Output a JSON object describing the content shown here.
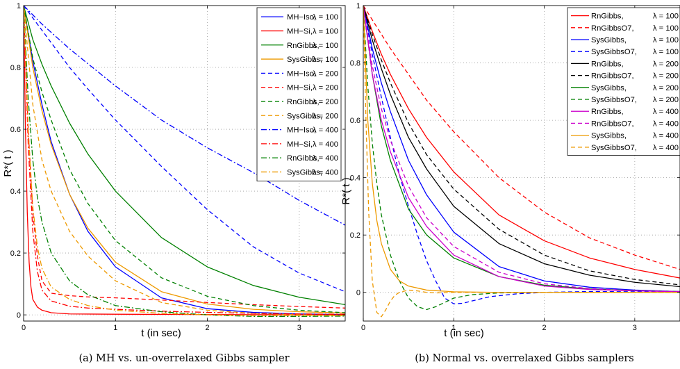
{
  "chart_data": [
    {
      "type": "line",
      "xlabel": "t (in sec)",
      "ylabel": "R*( t )",
      "caption": "(a) MH vs. un-overrelaxed Gibbs sampler",
      "xlim": [
        0,
        3.5
      ],
      "ylim": [
        -0.02,
        1.0
      ],
      "xticks": [
        0,
        1,
        2,
        3
      ],
      "yticks": [
        0,
        0.2,
        0.4,
        0.6,
        0.8,
        1
      ],
      "ytick_labels": [
        "0",
        "0.2",
        "0.4",
        "0.6",
        "0.8",
        "1"
      ],
      "grid": true,
      "legend_position": "top-right",
      "series": [
        {
          "label": "MH−Iso,",
          "lambda": "λ = 100",
          "color": "#0000ff",
          "dash": "solid",
          "x": [
            0,
            0.1,
            0.2,
            0.3,
            0.5,
            0.7,
            1.0,
            1.5,
            2.0,
            2.5,
            3.0,
            3.5
          ],
          "y": [
            1.0,
            0.82,
            0.68,
            0.56,
            0.39,
            0.27,
            0.155,
            0.055,
            0.02,
            0.008,
            0.003,
            0.001
          ]
        },
        {
          "label": "MH−Si,",
          "lambda": "λ = 100",
          "color": "#ff0000",
          "dash": "solid",
          "x": [
            0,
            0.02,
            0.04,
            0.06,
            0.08,
            0.1,
            0.15,
            0.2,
            0.3,
            0.5,
            1.0,
            2.0,
            3.5
          ],
          "y": [
            1.0,
            0.6,
            0.33,
            0.17,
            0.09,
            0.05,
            0.025,
            0.015,
            0.007,
            0.003,
            0.002,
            0.001,
            0.0
          ]
        },
        {
          "label": "RnGibbs,",
          "lambda": "λ = 100",
          "color": "#008000",
          "dash": "solid",
          "x": [
            0,
            0.1,
            0.2,
            0.3,
            0.5,
            0.7,
            1.0,
            1.5,
            2.0,
            2.5,
            3.0,
            3.5
          ],
          "y": [
            1.0,
            0.89,
            0.81,
            0.74,
            0.62,
            0.52,
            0.4,
            0.25,
            0.155,
            0.095,
            0.057,
            0.033
          ]
        },
        {
          "label": "SysGibbs,",
          "lambda": "λ = 100",
          "color": "#ee9a00",
          "dash": "solid",
          "x": [
            0,
            0.1,
            0.2,
            0.3,
            0.5,
            0.7,
            1.0,
            1.5,
            2.0,
            2.5,
            3.0,
            3.5
          ],
          "y": [
            1.0,
            0.8,
            0.66,
            0.55,
            0.39,
            0.28,
            0.17,
            0.075,
            0.035,
            0.018,
            0.01,
            0.006
          ]
        },
        {
          "label": "MH−Iso,",
          "lambda": "λ = 200",
          "color": "#0000ff",
          "dash": "6,4",
          "x": [
            0,
            0.1,
            0.2,
            0.3,
            0.5,
            0.7,
            1.0,
            1.5,
            2.0,
            2.5,
            3.0,
            3.5
          ],
          "y": [
            1.0,
            0.96,
            0.92,
            0.88,
            0.8,
            0.73,
            0.63,
            0.48,
            0.34,
            0.22,
            0.135,
            0.075
          ]
        },
        {
          "label": "MH−Si,",
          "lambda": "λ = 200",
          "color": "#ff0000",
          "dash": "6,4",
          "x": [
            0,
            0.05,
            0.1,
            0.15,
            0.2,
            0.3,
            0.5,
            0.7,
            1.0,
            1.5,
            2.0,
            2.5,
            3.0,
            3.5
          ],
          "y": [
            1.0,
            0.6,
            0.33,
            0.19,
            0.11,
            0.07,
            0.062,
            0.058,
            0.055,
            0.048,
            0.04,
            0.033,
            0.027,
            0.022
          ]
        },
        {
          "label": "RnGibbs,",
          "lambda": "λ = 200",
          "color": "#008000",
          "dash": "6,4",
          "x": [
            0,
            0.1,
            0.2,
            0.3,
            0.5,
            0.7,
            1.0,
            1.5,
            2.0,
            2.5,
            3.0,
            3.5
          ],
          "y": [
            1.0,
            0.83,
            0.72,
            0.63,
            0.47,
            0.36,
            0.24,
            0.12,
            0.06,
            0.03,
            0.015,
            0.007
          ]
        },
        {
          "label": "SysGibbs,",
          "lambda": "λ = 200",
          "color": "#ee9a00",
          "dash": "6,4",
          "x": [
            0,
            0.1,
            0.2,
            0.3,
            0.5,
            0.7,
            1.0,
            1.5,
            2.0,
            2.5,
            3.0,
            3.5
          ],
          "y": [
            1.0,
            0.68,
            0.5,
            0.4,
            0.27,
            0.19,
            0.11,
            0.04,
            0.015,
            0.005,
            0.0,
            -0.003
          ]
        },
        {
          "label": "MH−Iso,",
          "lambda": "λ = 400",
          "color": "#0000ff",
          "dash": "8,3,2,3",
          "x": [
            0,
            0.2,
            0.5,
            1.0,
            1.5,
            2.0,
            2.5,
            3.0,
            3.5
          ],
          "y": [
            1.0,
            0.94,
            0.86,
            0.74,
            0.63,
            0.54,
            0.46,
            0.37,
            0.29
          ]
        },
        {
          "label": "MH−Si,",
          "lambda": "λ = 400",
          "color": "#ff0000",
          "dash": "8,3,2,3",
          "x": [
            0,
            0.05,
            0.1,
            0.15,
            0.2,
            0.3,
            0.5,
            0.7,
            1.0,
            1.5,
            2.0,
            2.5,
            3.0,
            3.5
          ],
          "y": [
            1.0,
            0.55,
            0.27,
            0.14,
            0.08,
            0.045,
            0.028,
            0.022,
            0.018,
            0.012,
            0.008,
            0.005,
            0.003,
            0.002
          ]
        },
        {
          "label": "RnGibbs,",
          "lambda": "λ = 400",
          "color": "#008000",
          "dash": "8,3,2,3",
          "x": [
            0,
            0.05,
            0.1,
            0.15,
            0.2,
            0.3,
            0.5,
            0.7,
            1.0,
            1.5,
            2.0,
            2.5,
            3.0,
            3.5
          ],
          "y": [
            1.0,
            0.7,
            0.5,
            0.38,
            0.3,
            0.2,
            0.11,
            0.065,
            0.03,
            0.01,
            0.0,
            -0.005,
            -0.005,
            -0.004
          ]
        },
        {
          "label": "SysGibbs,",
          "lambda": "λ = 400",
          "color": "#ee9a00",
          "dash": "8,3,2,3",
          "x": [
            0,
            0.05,
            0.1,
            0.15,
            0.2,
            0.3,
            0.5,
            0.7,
            1.0,
            1.5,
            2.0,
            2.5,
            3.0,
            3.5
          ],
          "y": [
            1.0,
            0.6,
            0.35,
            0.22,
            0.15,
            0.09,
            0.05,
            0.03,
            0.015,
            0.005,
            0.0,
            -0.002,
            -0.002,
            -0.001
          ]
        }
      ]
    },
    {
      "type": "line",
      "xlabel": "t (in sec)",
      "ylabel": "R*( t )",
      "caption": "(b) Normal vs. overrelaxed Gibbs samplers",
      "xlim": [
        0,
        3.5
      ],
      "ylim": [
        -0.1,
        1.0
      ],
      "xticks": [
        0,
        1,
        2,
        3
      ],
      "yticks": [
        0,
        0.2,
        0.4,
        0.6,
        0.8,
        1
      ],
      "ytick_labels": [
        "0",
        "0.2",
        "0.4",
        "0.6",
        "0.8",
        "1"
      ],
      "grid": true,
      "legend_position": "top-right",
      "series": [
        {
          "label": "RnGibbs,",
          "lambda": "λ = 100",
          "color": "#ff0000",
          "dash": "solid",
          "x": [
            0,
            0.1,
            0.2,
            0.3,
            0.5,
            0.7,
            1.0,
            1.5,
            2.0,
            2.5,
            3.0,
            3.5
          ],
          "y": [
            1.0,
            0.91,
            0.83,
            0.76,
            0.64,
            0.54,
            0.42,
            0.27,
            0.18,
            0.12,
            0.08,
            0.05
          ]
        },
        {
          "label": "RnGibbsO7,",
          "lambda": "λ = 100",
          "color": "#ff0000",
          "dash": "6,4",
          "x": [
            0,
            0.1,
            0.2,
            0.3,
            0.5,
            0.7,
            1.0,
            1.5,
            2.0,
            2.5,
            3.0,
            3.5
          ],
          "y": [
            1.0,
            0.95,
            0.9,
            0.85,
            0.76,
            0.67,
            0.56,
            0.4,
            0.28,
            0.19,
            0.13,
            0.08
          ]
        },
        {
          "label": "SysGibbs,",
          "lambda": "λ = 100",
          "color": "#0000ff",
          "dash": "solid",
          "x": [
            0,
            0.1,
            0.2,
            0.3,
            0.5,
            0.7,
            1.0,
            1.5,
            2.0,
            2.5,
            3.0,
            3.5
          ],
          "y": [
            1.0,
            0.85,
            0.73,
            0.63,
            0.46,
            0.34,
            0.21,
            0.09,
            0.04,
            0.018,
            0.008,
            0.003
          ]
        },
        {
          "label": "SysGibbsO7,",
          "lambda": "λ = 100",
          "color": "#0000ff",
          "dash": "6,4",
          "x": [
            0,
            0.1,
            0.2,
            0.3,
            0.4,
            0.5,
            0.6,
            0.7,
            0.8,
            0.9,
            1.0,
            1.1,
            1.2,
            1.4,
            1.7,
            2.0,
            2.5,
            3.0,
            3.5
          ],
          "y": [
            1.0,
            0.83,
            0.68,
            0.54,
            0.41,
            0.3,
            0.2,
            0.11,
            0.04,
            -0.02,
            -0.04,
            -0.038,
            -0.03,
            -0.015,
            -0.005,
            0.0,
            0.003,
            0.002,
            0.0
          ]
        },
        {
          "label": "RnGibbs,",
          "lambda": "λ = 200",
          "color": "#000000",
          "dash": "solid",
          "x": [
            0,
            0.1,
            0.2,
            0.3,
            0.5,
            0.7,
            1.0,
            1.5,
            2.0,
            2.5,
            3.0,
            3.5
          ],
          "y": [
            1.0,
            0.88,
            0.78,
            0.69,
            0.54,
            0.43,
            0.3,
            0.17,
            0.1,
            0.06,
            0.035,
            0.02
          ]
        },
        {
          "label": "RnGibbsO7,",
          "lambda": "λ = 200",
          "color": "#000000",
          "dash": "6,4",
          "x": [
            0,
            0.1,
            0.2,
            0.3,
            0.5,
            0.7,
            1.0,
            1.5,
            2.0,
            2.5,
            3.0,
            3.5
          ],
          "y": [
            1.0,
            0.9,
            0.81,
            0.73,
            0.59,
            0.48,
            0.36,
            0.22,
            0.13,
            0.075,
            0.045,
            0.026
          ]
        },
        {
          "label": "SysGibbs,",
          "lambda": "λ = 200",
          "color": "#008000",
          "dash": "solid",
          "x": [
            0,
            0.1,
            0.2,
            0.3,
            0.5,
            0.7,
            1.0,
            1.5,
            2.0,
            2.5,
            3.0,
            3.5
          ],
          "y": [
            1.0,
            0.76,
            0.58,
            0.46,
            0.29,
            0.2,
            0.12,
            0.055,
            0.025,
            0.012,
            0.006,
            0.003
          ]
        },
        {
          "label": "SysGibbsO7,",
          "lambda": "λ = 200",
          "color": "#008000",
          "dash": "6,4",
          "x": [
            0,
            0.05,
            0.1,
            0.15,
            0.2,
            0.3,
            0.4,
            0.5,
            0.6,
            0.7,
            0.8,
            0.9,
            1.0,
            1.2,
            1.5,
            2.0,
            2.5,
            3.0,
            3.5
          ],
          "y": [
            1.0,
            0.72,
            0.52,
            0.38,
            0.27,
            0.13,
            0.04,
            -0.02,
            -0.05,
            -0.06,
            -0.05,
            -0.035,
            -0.02,
            -0.008,
            -0.002,
            0.0,
            0.0,
            0.0,
            0.0
          ]
        },
        {
          "label": "RnGibbs,",
          "lambda": "λ = 400",
          "color": "#cc00cc",
          "dash": "solid",
          "x": [
            0,
            0.1,
            0.2,
            0.3,
            0.5,
            0.7,
            1.0,
            1.5,
            2.0,
            2.5,
            3.0,
            3.5
          ],
          "y": [
            1.0,
            0.76,
            0.6,
            0.49,
            0.33,
            0.23,
            0.13,
            0.055,
            0.022,
            0.01,
            0.005,
            0.002
          ]
        },
        {
          "label": "RnGibbsO7,",
          "lambda": "λ = 400",
          "color": "#cc00cc",
          "dash": "6,4",
          "x": [
            0,
            0.1,
            0.2,
            0.3,
            0.5,
            0.7,
            1.0,
            1.5,
            2.0,
            2.5,
            3.0,
            3.5
          ],
          "y": [
            1.0,
            0.79,
            0.64,
            0.53,
            0.37,
            0.26,
            0.16,
            0.07,
            0.03,
            0.013,
            0.006,
            0.003
          ]
        },
        {
          "label": "SysGibbs,",
          "lambda": "λ = 400",
          "color": "#ee9a00",
          "dash": "solid",
          "x": [
            0,
            0.05,
            0.1,
            0.15,
            0.2,
            0.3,
            0.4,
            0.5,
            0.7,
            1.0,
            1.5,
            2.0,
            2.5,
            3.0,
            3.5
          ],
          "y": [
            1.0,
            0.6,
            0.38,
            0.25,
            0.17,
            0.08,
            0.04,
            0.022,
            0.008,
            0.002,
            0.0,
            0.0,
            0.0,
            0.0,
            0.0
          ]
        },
        {
          "label": "SysGibbsO7,",
          "lambda": "λ = 400",
          "color": "#ee9a00",
          "dash": "6,4",
          "x": [
            0,
            0.03,
            0.06,
            0.1,
            0.15,
            0.2,
            0.25,
            0.3,
            0.35,
            0.4,
            0.5,
            0.6,
            0.7,
            0.8,
            1.0,
            1.5,
            2.0,
            2.5,
            3.0,
            3.5
          ],
          "y": [
            1.0,
            0.6,
            0.28,
            0.04,
            -0.07,
            -0.085,
            -0.06,
            -0.03,
            -0.01,
            0.0,
            0.008,
            0.005,
            0.0,
            -0.002,
            0.0,
            0.0,
            0.0,
            0.0,
            0.0,
            0.0
          ]
        }
      ]
    }
  ]
}
